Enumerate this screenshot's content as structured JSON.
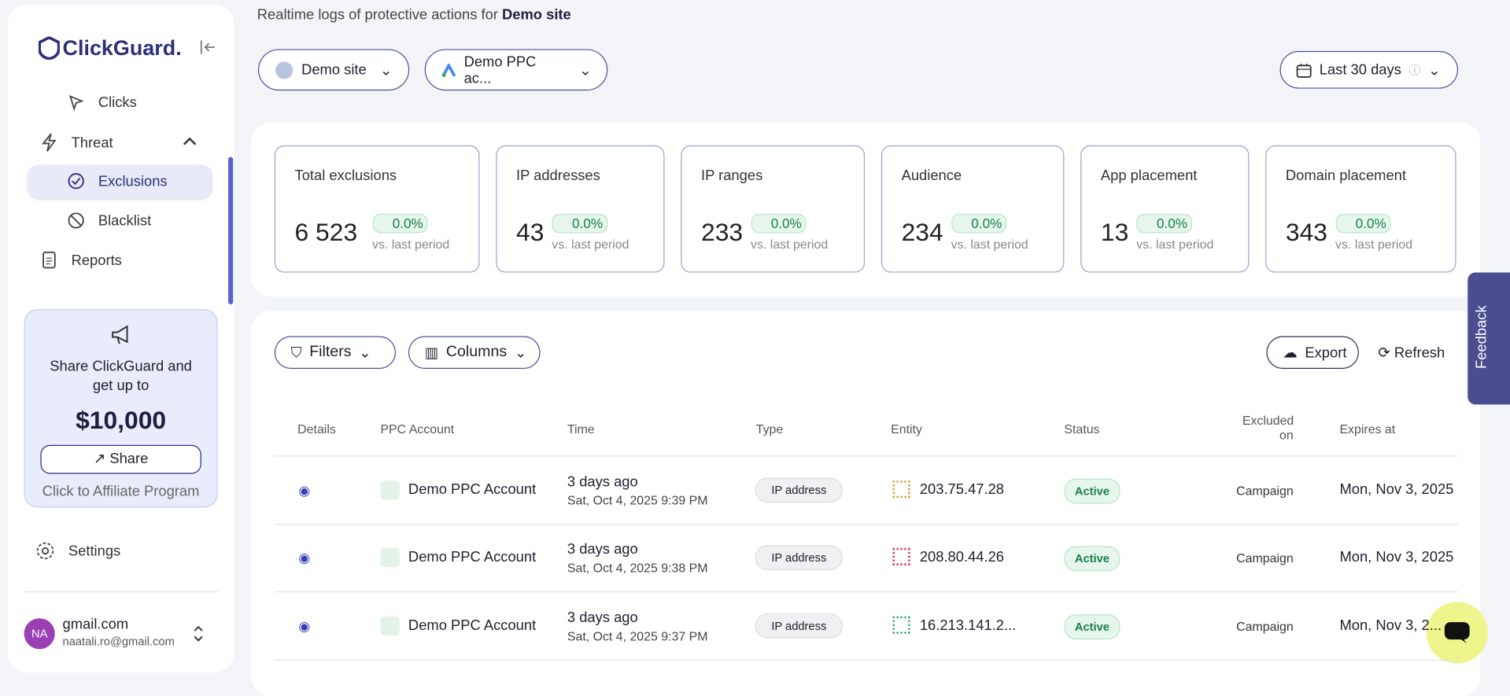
{
  "brand": "ClickGuard.",
  "nav": [
    {
      "label": "Clicks"
    },
    {
      "label": "Threat"
    },
    {
      "label": "Exclusions"
    },
    {
      "label": "Blacklist"
    },
    {
      "label": "Reports"
    }
  ],
  "promo": {
    "text": "Share ClickGuard and get up to",
    "amount": "$10,000",
    "button": "Share",
    "link": "Click to Affiliate Program"
  },
  "settings": "Settings",
  "user": {
    "initials": "NA",
    "name": "gmail.com",
    "email": "naatali.ro@gmail.com"
  },
  "header": {
    "subtitle": "Realtime logs of protective actions for",
    "site": "Demo site"
  },
  "selectors": {
    "site": "Demo site",
    "account": "Demo PPC ac...",
    "period": "Last 30 days"
  },
  "stats": [
    {
      "label": "Total exclusions",
      "value": "6 523",
      "change": "0.0%",
      "note": "vs. last period"
    },
    {
      "label": "IP addresses",
      "value": "43",
      "change": "0.0%",
      "note": "vs. last period"
    },
    {
      "label": "IP ranges",
      "value": "233",
      "change": "0.0%",
      "note": "vs. last period"
    },
    {
      "label": "Audience",
      "value": "234",
      "change": "0.0%",
      "note": "vs. last period"
    },
    {
      "label": "App placement",
      "value": "13",
      "change": "0.0%",
      "note": "vs. last period"
    },
    {
      "label": "Domain placement",
      "value": "343",
      "change": "0.0%",
      "note": "vs. last period"
    }
  ],
  "toolbar": {
    "filters": "Filters",
    "columns": "Columns",
    "export": "Export",
    "refresh": "Refresh"
  },
  "table": {
    "columns": [
      "Details",
      "PPC Account",
      "Time",
      "Type",
      "Entity",
      "Status",
      "Excluded on",
      "Expires at"
    ],
    "rows": [
      {
        "account": "Demo PPC Account",
        "ago": "3 days ago",
        "time": "Sat, Oct 4, 2025 9:39 PM",
        "type": "IP address",
        "entity": "203.75.47.28",
        "status": "Active",
        "excluded_on": "Campaign",
        "expires": "Mon, Nov 3, 2025"
      },
      {
        "account": "Demo PPC Account",
        "ago": "3 days ago",
        "time": "Sat, Oct 4, 2025 9:38 PM",
        "type": "IP address",
        "entity": "208.80.44.26",
        "status": "Active",
        "excluded_on": "Campaign",
        "expires": "Mon, Nov 3, 2025"
      },
      {
        "account": "Demo PPC Account",
        "ago": "3 days ago",
        "time": "Sat, Oct 4, 2025 9:37 PM",
        "type": "IP address",
        "entity": "16.213.141.2...",
        "status": "Active",
        "excluded_on": "Campaign",
        "expires": "Mon, Nov 3, 2..."
      }
    ]
  },
  "feedback": "Feedback"
}
